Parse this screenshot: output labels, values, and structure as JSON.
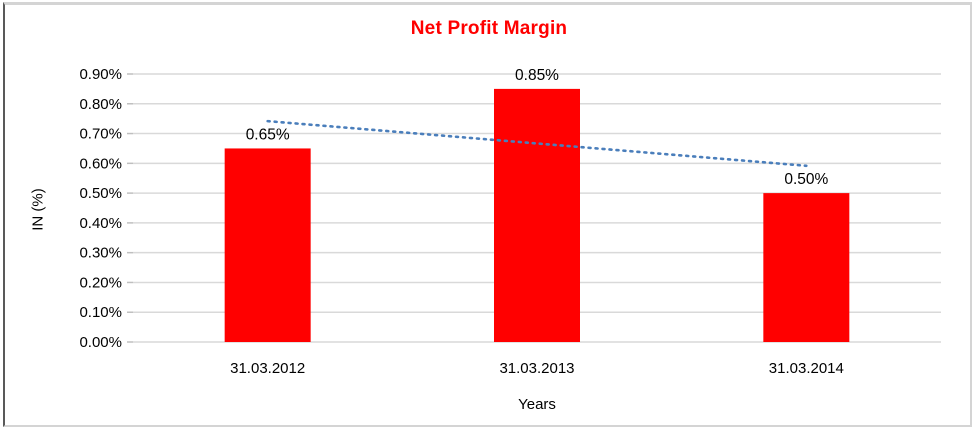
{
  "chart_data": {
    "type": "bar",
    "title": "Net Profit Margin",
    "title_color": "#ff0000",
    "categories": [
      "31.03.2012",
      "31.03.2013",
      "31.03.2014"
    ],
    "values": [
      0.65,
      0.85,
      0.5
    ],
    "data_labels": [
      "0.65%",
      "0.85%",
      "0.50%"
    ],
    "bar_color": "#ff0000",
    "xlabel": "Years",
    "ylabel": "IN (%)",
    "ylim": [
      0.0,
      0.9
    ],
    "ytick_step": 0.1,
    "ytick_labels": [
      "0.00%",
      "0.10%",
      "0.20%",
      "0.30%",
      "0.40%",
      "0.50%",
      "0.60%",
      "0.70%",
      "0.80%",
      "0.90%"
    ],
    "grid": true,
    "gridline_color": "#d9d9d9",
    "tick_color": "#bfbfbf",
    "legend": "none",
    "trendline": {
      "type": "linear",
      "style": "dotted",
      "color": "#4a7ebb",
      "start_value": 0.7417,
      "end_value": 0.5917
    }
  }
}
